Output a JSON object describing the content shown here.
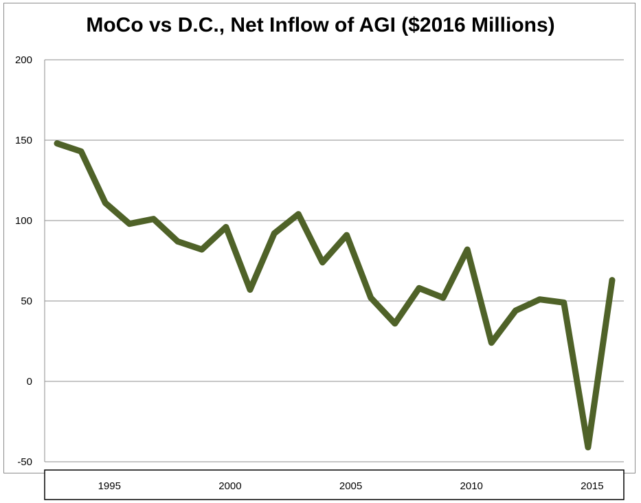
{
  "chart_data": {
    "type": "line",
    "title": "MoCo vs D.C., Net Inflow of AGI ($2016 Millions)",
    "xlabel": "",
    "ylabel": "",
    "ylim": [
      -50,
      200
    ],
    "yticks": [
      -50,
      0,
      50,
      100,
      150,
      200
    ],
    "xlim": [
      1993,
      2016
    ],
    "xticks": [
      1995,
      2000,
      2005,
      2010,
      2015
    ],
    "grid": true,
    "legend": "none",
    "series": [
      {
        "color": "#4f6228",
        "x": [
          1993,
          1994,
          1995,
          1996,
          1997,
          1998,
          1999,
          2000,
          2001,
          2002,
          2003,
          2004,
          2005,
          2006,
          2007,
          2008,
          2009,
          2010,
          2011,
          2012,
          2013,
          2014,
          2015,
          2016
        ],
        "values": [
          148,
          143,
          111,
          98,
          101,
          87,
          82,
          96,
          57,
          92,
          104,
          74,
          91,
          52,
          36,
          58,
          52,
          82,
          24,
          44,
          51,
          49,
          -41,
          63
        ]
      }
    ]
  }
}
